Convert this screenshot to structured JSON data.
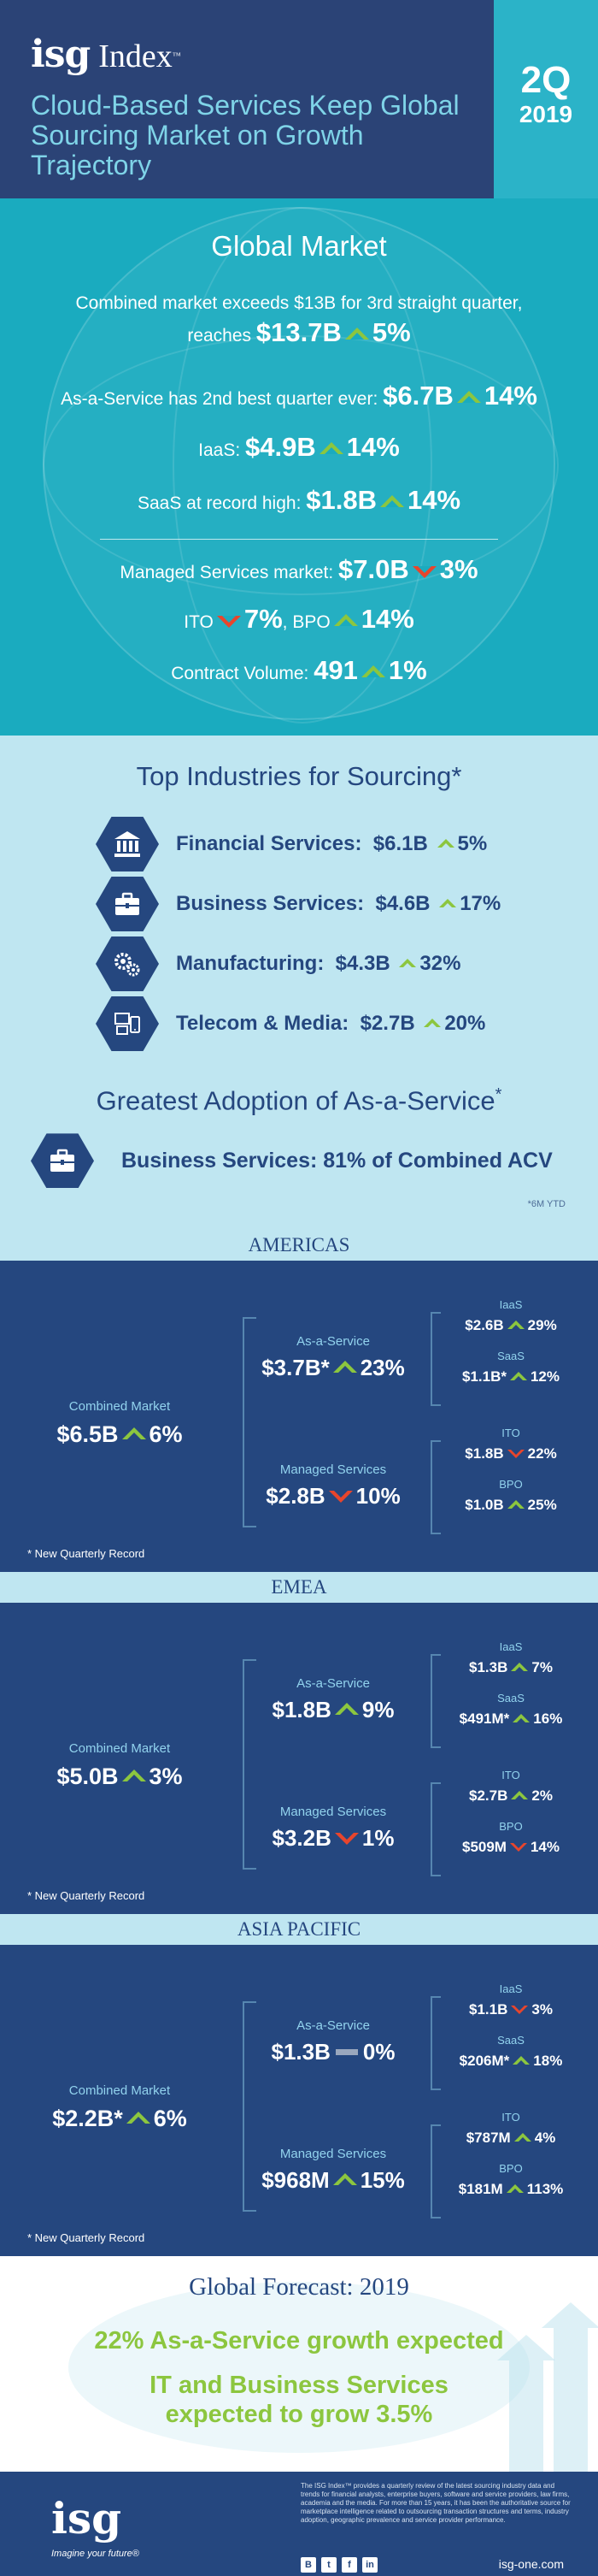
{
  "header": {
    "logo_isg": "isg",
    "logo_index": "Index",
    "logo_tm": "™",
    "headline": "Cloud-Based Services Keep Global Sourcing Market on Growth Trajectory",
    "quarter": "2Q",
    "year": "2019"
  },
  "global_market": {
    "title": "Global Market",
    "l1_text": "Combined market exceeds $13B for 3rd straight quarter,",
    "l2_pre": "reaches",
    "l2_value": "$13.7B",
    "l2_change": "5%",
    "l3_text": "As-a-Service has 2nd best quarter ever:",
    "l3_value": "$6.7B",
    "l3_change": "14%",
    "l4_text": "IaaS:",
    "l4_value": "$4.9B",
    "l4_change": "14%",
    "l5_text": "SaaS at record high:",
    "l5_value": "$1.8B",
    "l5_change": "14%",
    "l6_text": "Managed Services market:",
    "l6_value": "$7.0B",
    "l6_change": "3%",
    "l7_ito": "ITO",
    "l7_ito_change": "7%",
    "l7_sep": ",",
    "l7_bpo": "BPO",
    "l7_bpo_change": "14%",
    "l8_text": "Contract Volume:",
    "l8_value": "491",
    "l8_change": "1%"
  },
  "industries": {
    "title": "Top Industries for Sourcing*",
    "items": [
      {
        "name": "Financial Services:",
        "value": "$6.1B",
        "change": "5%",
        "icon": "bank-icon"
      },
      {
        "name": "Business Services:",
        "value": "$4.6B",
        "change": "17%",
        "icon": "briefcase-icon"
      },
      {
        "name": "Manufacturing:",
        "value": "$4.3B",
        "change": "32%",
        "icon": "gears-icon"
      },
      {
        "name": "Telecom & Media:",
        "value": "$2.7B",
        "change": "20%",
        "icon": "devices-icon"
      }
    ],
    "adoption_title": "Greatest Adoption of As-a-Service",
    "adoption_star": "*",
    "adoption_text": "Business Services: 81% of Combined ACV",
    "footnote": "*6M YTD"
  },
  "regions": [
    {
      "name": "AMERICAS",
      "combined_label": "Combined Market",
      "combined_value": "$6.5B",
      "combined_change": "6%",
      "aas_label": "As-a-Service",
      "aas_value": "$3.7B*",
      "aas_change": "23%",
      "ms_label": "Managed Services",
      "ms_value": "$2.8B",
      "ms_change": "10%",
      "iaas_label": "IaaS",
      "iaas_value": "$2.6B",
      "iaas_change": "29%",
      "saas_label": "SaaS",
      "saas_value": "$1.1B*",
      "saas_change": "12%",
      "ito_label": "ITO",
      "ito_value": "$1.8B",
      "ito_change": "22%",
      "bpo_label": "BPO",
      "bpo_value": "$1.0B",
      "bpo_change": "25%",
      "note": "New Quarterly Record"
    },
    {
      "name": "EMEA",
      "combined_label": "Combined Market",
      "combined_value": "$5.0B",
      "combined_change": "3%",
      "aas_label": "As-a-Service",
      "aas_value": "$1.8B",
      "aas_change": "9%",
      "ms_label": "Managed Services",
      "ms_value": "$3.2B",
      "ms_change": "1%",
      "iaas_label": "IaaS",
      "iaas_value": "$1.3B",
      "iaas_change": "7%",
      "saas_label": "SaaS",
      "saas_value": "$491M*",
      "saas_change": "16%",
      "ito_label": "ITO",
      "ito_value": "$2.7B",
      "ito_change": "2%",
      "bpo_label": "BPO",
      "bpo_value": "$509M",
      "bpo_change": "14%",
      "note": "New Quarterly Record"
    },
    {
      "name": "ASIA PACIFIC",
      "combined_label": "Combined Market",
      "combined_value": "$2.2B*",
      "combined_change": "6%",
      "aas_label": "As-a-Service",
      "aas_value": "$1.3B",
      "aas_change": "0%",
      "ms_label": "Managed Services",
      "ms_value": "$968M",
      "ms_change": "15%",
      "iaas_label": "IaaS",
      "iaas_value": "$1.1B",
      "iaas_change": "3%",
      "saas_label": "SaaS",
      "saas_value": "$206M*",
      "saas_change": "18%",
      "ito_label": "ITO",
      "ito_value": "$787M",
      "ito_change": "4%",
      "bpo_label": "BPO",
      "bpo_value": "$181M",
      "bpo_change": "113%",
      "note": "New Quarterly Record"
    }
  ],
  "forecast": {
    "title": "Global Forecast: 2019",
    "line1": "22% As-a-Service growth expected",
    "line2a": "IT and Business Services",
    "line2b": "expected to grow 3.5%"
  },
  "footer": {
    "logo": "isg",
    "tagline": "Imagine your future",
    "tagline_tm": "®",
    "about": "The ISG Index™ provides a quarterly review of the latest sourcing industry data and trends for financial analysts, enterprise buyers, software and service providers, law firms, academia and the media. For more than 15 years, it has been the authoritative source for marketplace intelligence related to outsourcing transaction structures and terms, industry adoption, geographic prevalence and service provider performance.",
    "url": "isg-one.com",
    "social": [
      "B",
      "t",
      "f",
      "in"
    ]
  },
  "colors": {
    "navy": "#2b4376",
    "teal": "#1aabbf",
    "light_blue": "#bfe6f1",
    "green_up": "#8cc63f",
    "red_down": "#e8452c"
  }
}
